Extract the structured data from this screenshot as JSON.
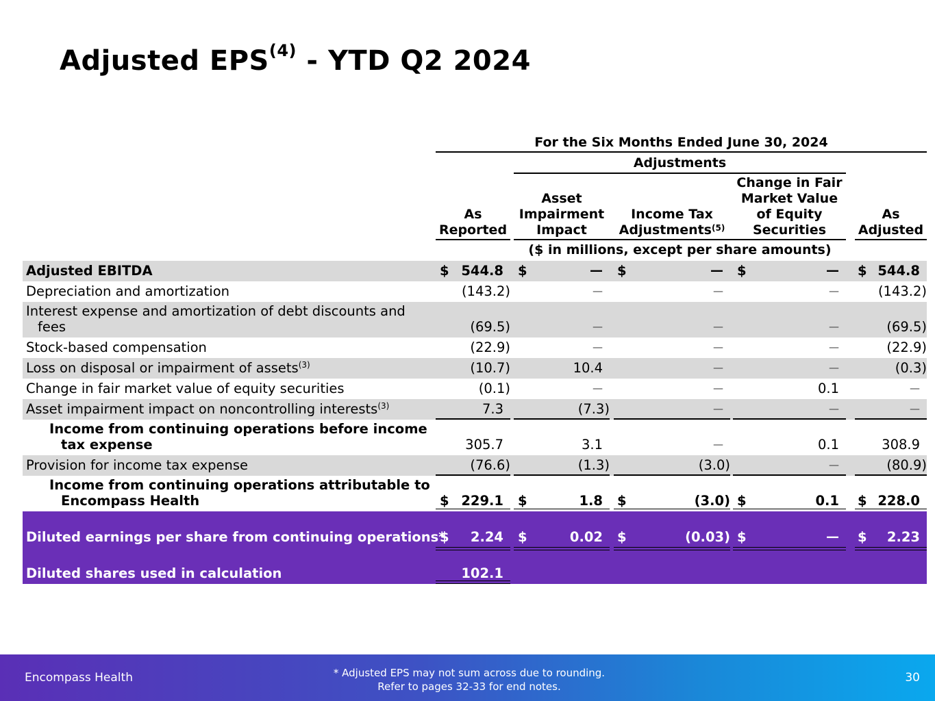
{
  "title": {
    "main": "Adjusted EPS",
    "sup": "(4)",
    "rest": " - YTD Q2 2024"
  },
  "header": {
    "period": "For the Six Months Ended June 30, 2024",
    "adjustments": "Adjustments",
    "col_as_reported": [
      "As",
      "Reported"
    ],
    "col_asset": [
      "Asset",
      "Impairment",
      "Impact"
    ],
    "col_income_tax": [
      "Income Tax",
      "Adjustments"
    ],
    "col_income_tax_sup": "(5)",
    "col_fair": [
      "Change in Fair",
      "Market Value",
      "of Equity",
      "Securities"
    ],
    "col_as_adjusted": [
      "As",
      "Adjusted"
    ],
    "units": "($ in millions, except per share amounts)"
  },
  "rows": [
    {
      "label": "Adjusted EBITDA",
      "sup": "",
      "values": [
        "544.8",
        "—",
        "—",
        "—",
        "544.8"
      ]
    },
    {
      "label": "Depreciation and amortization",
      "sup": "",
      "values": [
        "(143.2)",
        "—",
        "—",
        "—",
        "(143.2)"
      ]
    },
    {
      "label_lines": [
        "Interest expense and amortization of debt discounts and",
        "fees"
      ],
      "values": [
        "(69.5)",
        "—",
        "—",
        "—",
        "(69.5)"
      ]
    },
    {
      "label": "Stock-based compensation",
      "sup": "",
      "values": [
        "(22.9)",
        "—",
        "—",
        "—",
        "(22.9)"
      ]
    },
    {
      "label": "Loss on disposal or impairment of assets",
      "sup": "(3)",
      "values": [
        "(10.7)",
        "10.4",
        "—",
        "—",
        "(0.3)"
      ]
    },
    {
      "label": "Change in fair market value of equity securities",
      "sup": "",
      "values": [
        "(0.1)",
        "—",
        "—",
        "0.1",
        "—"
      ]
    },
    {
      "label": "Asset impairment impact on noncontrolling interests",
      "sup": "(3)",
      "values": [
        "7.3",
        "(7.3)",
        "—",
        "—",
        "—"
      ]
    },
    {
      "label_lines": [
        "Income from continuing operations before income",
        "tax expense"
      ],
      "values": [
        "305.7",
        "3.1",
        "—",
        "0.1",
        "308.9"
      ]
    },
    {
      "label": "Provision for income tax expense",
      "sup": "",
      "values": [
        "(76.6)",
        "(1.3)",
        "(3.0)",
        "—",
        "(80.9)"
      ]
    },
    {
      "label_lines": [
        "Income from continuing operations attributable to",
        "Encompass Health"
      ],
      "values": [
        "229.1",
        "1.8",
        "(3.0)",
        "0.1",
        "228.0"
      ]
    },
    {
      "label": "Diluted earnings per share from continuing operations*",
      "sup": "",
      "values": [
        "2.24",
        "0.02",
        "(0.03)",
        "—",
        "2.23"
      ]
    },
    {
      "label": "Diluted shares used in calculation",
      "sup": "",
      "values": [
        "102.1"
      ]
    }
  ],
  "currency_symbol": "$",
  "footer": {
    "brand": "Encompass Health",
    "note_line1": "*  Adjusted EPS may not sum across due to rounding.",
    "note_line2": "Refer to pages 32-33 for end notes.",
    "page": "30"
  },
  "colors": {
    "purple_band": "#6a2fb7",
    "shade": "#d9d9d9"
  }
}
